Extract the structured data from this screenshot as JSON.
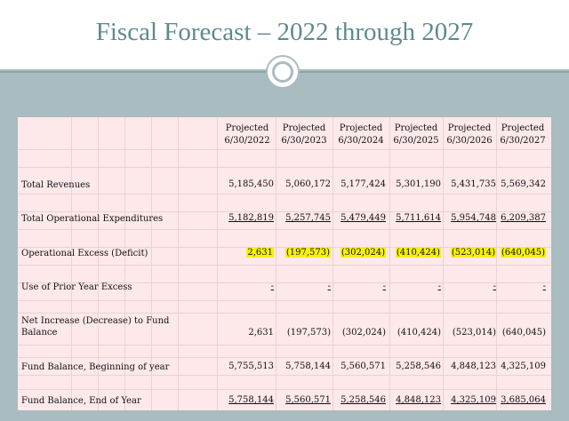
{
  "title": "Fiscal Forecast – 2022 through 2027",
  "columns": [
    {
      "line1": "Projected",
      "line2": "6/30/2022"
    },
    {
      "line1": "Projected",
      "line2": "6/30/2023"
    },
    {
      "line1": "Projected",
      "line2": "6/30/2024"
    },
    {
      "line1": "Projected",
      "line2": "6/30/2025"
    },
    {
      "line1": "Projected",
      "line2": "6/30/2026"
    },
    {
      "line1": "Projected",
      "line2": "6/30/2027"
    }
  ],
  "rows": [
    {
      "label": "Total Revenues",
      "values": [
        "5,185,450",
        "5,060,172",
        "5,177,424",
        "5,301,190",
        "5,431,735",
        "5,569,342"
      ]
    },
    {
      "label": "Total Operational Expenditures",
      "values": [
        "5,182,819",
        "5,257,745",
        "5,479,449",
        "5,711,614",
        "5,954,748",
        "6,209,387"
      ]
    },
    {
      "label": "Operational Excess (Deficit)",
      "values": [
        "2,631",
        "(197,573)",
        "(302,024)",
        "(410,424)",
        "(523,014)",
        "(640,045)"
      ]
    },
    {
      "label": "Use of Prior Year Excess",
      "values": [
        "-",
        "-",
        "-",
        "-",
        "-",
        "-"
      ]
    },
    {
      "label_line1": "Net Increase (Decrease) to Fund",
      "label_line2": "Balance",
      "values": [
        "2,631",
        "(197,573)",
        "(302,024)",
        "(410,424)",
        "(523,014)",
        "(640,045)"
      ]
    },
    {
      "label": "Fund Balance, Beginning of year",
      "values": [
        "5,755,513",
        "5,758,144",
        "5,560,571",
        "5,258,546",
        "4,848,123",
        "4,325,109"
      ]
    },
    {
      "label": "Fund Balance, End of Year",
      "values": [
        "5,758,144",
        "5,560,571",
        "5,258,546",
        "4,848,123",
        "4,325,109",
        "3,685,064"
      ]
    }
  ],
  "colors": {
    "highlight": "#f7f10a",
    "title": "#5f8a8e",
    "sheet": "#fde8ea",
    "frame": "#a9bcc0"
  }
}
